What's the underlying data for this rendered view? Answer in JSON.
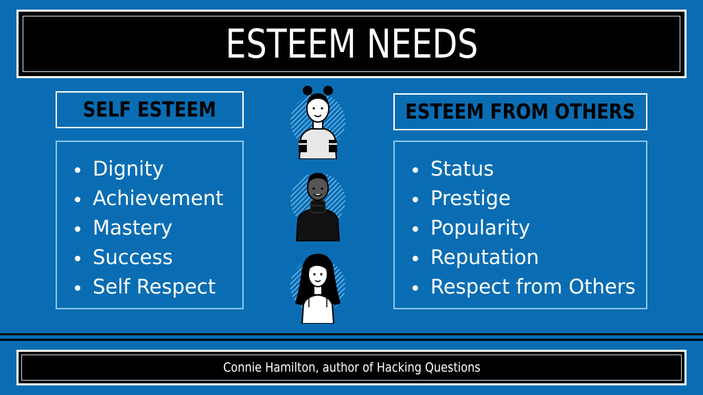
{
  "title": "ESTEEM NEEDS",
  "left": {
    "heading": "SELF ESTEEM",
    "items": [
      "Dignity",
      "Achievement",
      "Mastery",
      "Success",
      "Self Respect"
    ]
  },
  "right": {
    "heading": "ESTEEM FROM OTHERS",
    "items": [
      "Status",
      "Prestige",
      "Popularity",
      "Reputation",
      "Respect from Others"
    ]
  },
  "footer": "Connie Hamilton, author of Hacking Questions",
  "colors": {
    "background": "#0a6db3",
    "bar": "#000000",
    "text": "#ffffff",
    "avatar_accent": "#7fc6f2"
  },
  "avatars": [
    "avatar-bun-hair-person-icon",
    "avatar-turtleneck-person-icon",
    "avatar-long-hair-person-icon"
  ]
}
